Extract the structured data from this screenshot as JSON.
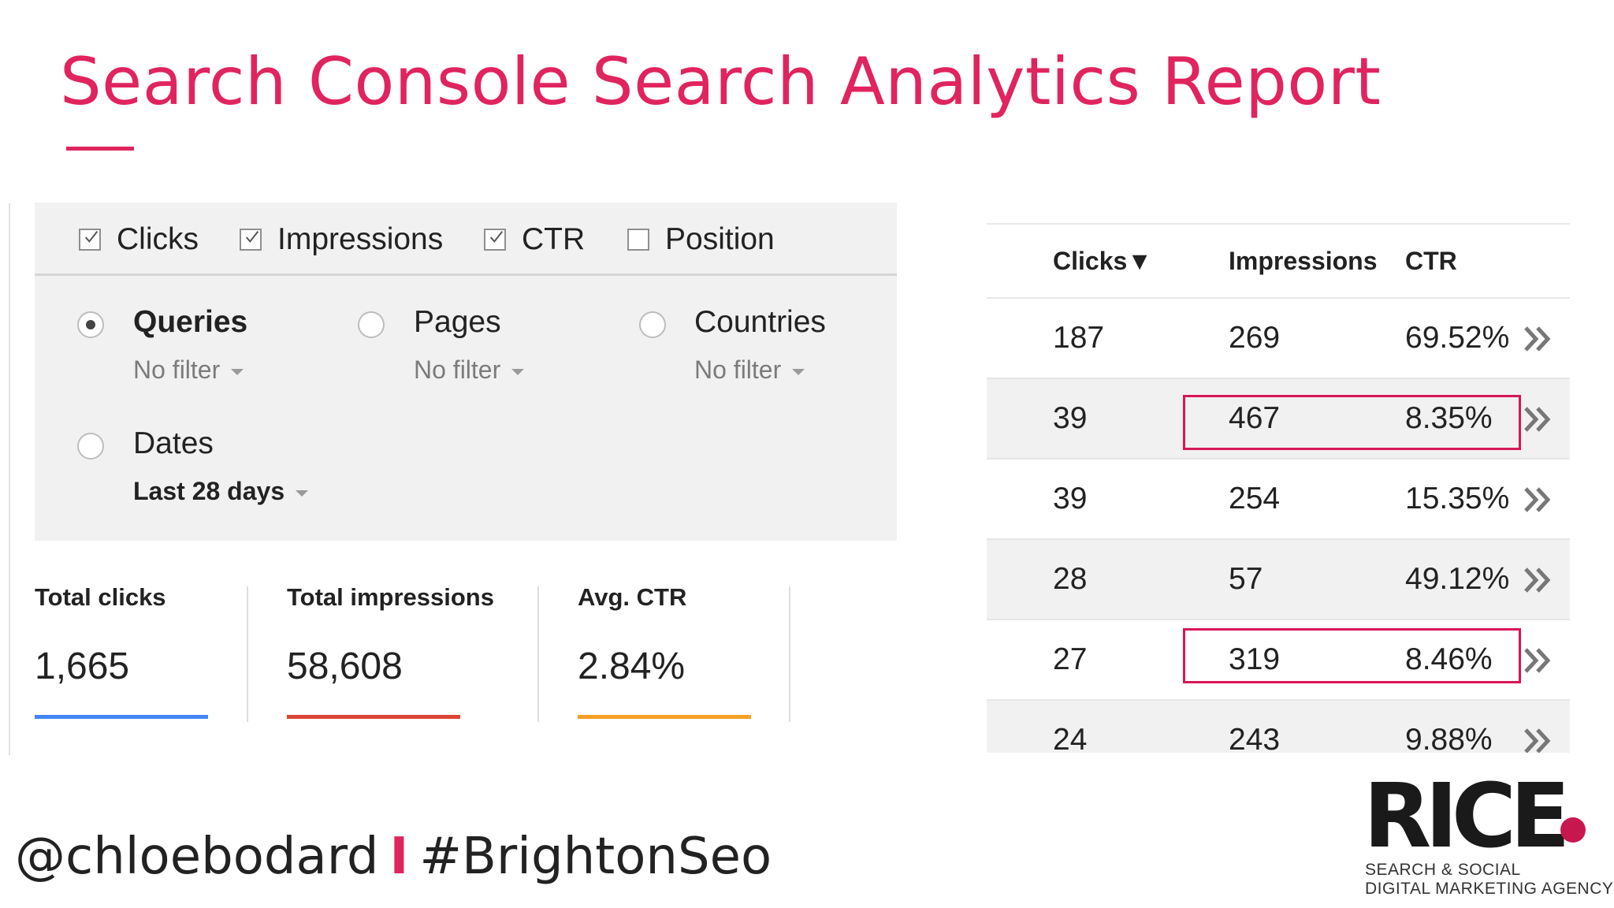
{
  "slide": {
    "title": "Search Console Search Analytics Report",
    "accent_color": "#e0245e",
    "handle": "@chloebodard",
    "separator": "I",
    "hashtag": "#BrightonSeo",
    "logo": {
      "word": "RICE",
      "tag_line1": "SEARCH & SOCIAL",
      "tag_line2": "DIGITAL MARKETING AGENCY"
    }
  },
  "metrics": [
    {
      "label": "Clicks",
      "checked": true
    },
    {
      "label": "Impressions",
      "checked": true
    },
    {
      "label": "CTR",
      "checked": true
    },
    {
      "label": "Position",
      "checked": false
    }
  ],
  "dimensions": {
    "queries": {
      "label": "Queries",
      "filter": "No filter",
      "selected": true
    },
    "pages": {
      "label": "Pages",
      "filter": "No filter",
      "selected": false
    },
    "countries": {
      "label": "Countries",
      "filter": "No filter",
      "selected": false
    },
    "dates": {
      "label": "Dates",
      "filter": "Last 28 days",
      "selected": false
    }
  },
  "totals": [
    {
      "label": "Total clicks",
      "value": "1,665",
      "color": "#4285f4"
    },
    {
      "label": "Total impressions",
      "value": "58,608",
      "color": "#db4437"
    },
    {
      "label": "Avg. CTR",
      "value": "2.84%",
      "color": "#f4a025"
    }
  ],
  "table": {
    "headers": {
      "clicks": "Clicks▼",
      "impressions": "Impressions",
      "ctr": "CTR"
    },
    "rows": [
      {
        "clicks": "187",
        "impressions": "269",
        "ctr": "69.52%",
        "highlighted": false
      },
      {
        "clicks": "39",
        "impressions": "467",
        "ctr": "8.35%",
        "highlighted": true
      },
      {
        "clicks": "39",
        "impressions": "254",
        "ctr": "15.35%",
        "highlighted": false
      },
      {
        "clicks": "28",
        "impressions": "57",
        "ctr": "49.12%",
        "highlighted": false
      },
      {
        "clicks": "27",
        "impressions": "319",
        "ctr": "8.46%",
        "highlighted": true
      },
      {
        "clicks": "24",
        "impressions": "243",
        "ctr": "9.88%",
        "highlighted": false
      }
    ],
    "highlight_color": "#d8165a",
    "row_icon": "double-chevron-right-icon"
  }
}
